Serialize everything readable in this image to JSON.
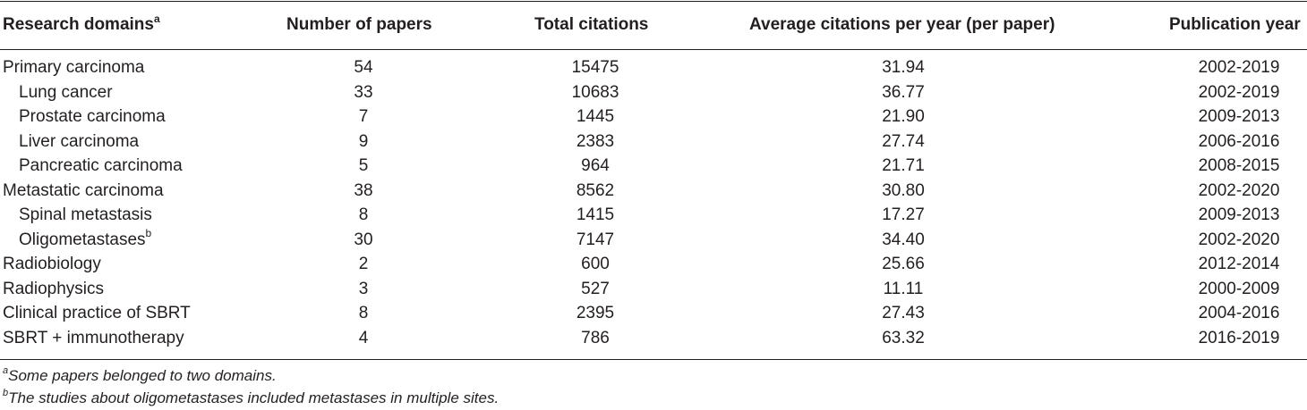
{
  "table": {
    "headers": {
      "domain": "Research domains",
      "domain_marker": "a",
      "papers": "Number of papers",
      "citations": "Total citations",
      "avg": "Average citations per year (per paper)",
      "year": "Publication year"
    },
    "rows": [
      {
        "domain": "Primary carcinoma",
        "marker": "",
        "indent": false,
        "papers": "54",
        "citations": "15475",
        "avg": "31.94",
        "year": "2002-2019"
      },
      {
        "domain": "Lung cancer",
        "marker": "",
        "indent": true,
        "papers": "33",
        "citations": "10683",
        "avg": "36.77",
        "year": "2002-2019"
      },
      {
        "domain": "Prostate carcinoma",
        "marker": "",
        "indent": true,
        "papers": "7",
        "citations": "1445",
        "avg": "21.90",
        "year": "2009-2013"
      },
      {
        "domain": "Liver carcinoma",
        "marker": "",
        "indent": true,
        "papers": "9",
        "citations": "2383",
        "avg": "27.74",
        "year": "2006-2016"
      },
      {
        "domain": "Pancreatic carcinoma",
        "marker": "",
        "indent": true,
        "papers": "5",
        "citations": "964",
        "avg": "21.71",
        "year": "2008-2015"
      },
      {
        "domain": "Metastatic carcinoma",
        "marker": "",
        "indent": false,
        "papers": "38",
        "citations": "8562",
        "avg": "30.80",
        "year": "2002-2020"
      },
      {
        "domain": "Spinal metastasis",
        "marker": "",
        "indent": true,
        "papers": "8",
        "citations": "1415",
        "avg": "17.27",
        "year": "2009-2013"
      },
      {
        "domain": "Oligometastases",
        "marker": "b",
        "indent": true,
        "papers": "30",
        "citations": "7147",
        "avg": "34.40",
        "year": "2002-2020"
      },
      {
        "domain": "Radiobiology",
        "marker": "",
        "indent": false,
        "papers": "2",
        "citations": "600",
        "avg": "25.66",
        "year": "2012-2014"
      },
      {
        "domain": "Radiophysics",
        "marker": "",
        "indent": false,
        "papers": "3",
        "citations": "527",
        "avg": "11.11",
        "year": "2000-2009"
      },
      {
        "domain": "Clinical practice of SBRT",
        "marker": "",
        "indent": false,
        "papers": "8",
        "citations": "2395",
        "avg": "27.43",
        "year": "2004-2016"
      },
      {
        "domain": "SBRT + immunotherapy",
        "marker": "",
        "indent": false,
        "papers": "4",
        "citations": "786",
        "avg": "63.32",
        "year": "2016-2019"
      }
    ]
  },
  "footnotes": {
    "a_marker": "a",
    "a_text": "Some papers belonged to two domains.",
    "b_marker": "b",
    "b_text": "The studies about oligometastases included metastases in multiple sites."
  }
}
